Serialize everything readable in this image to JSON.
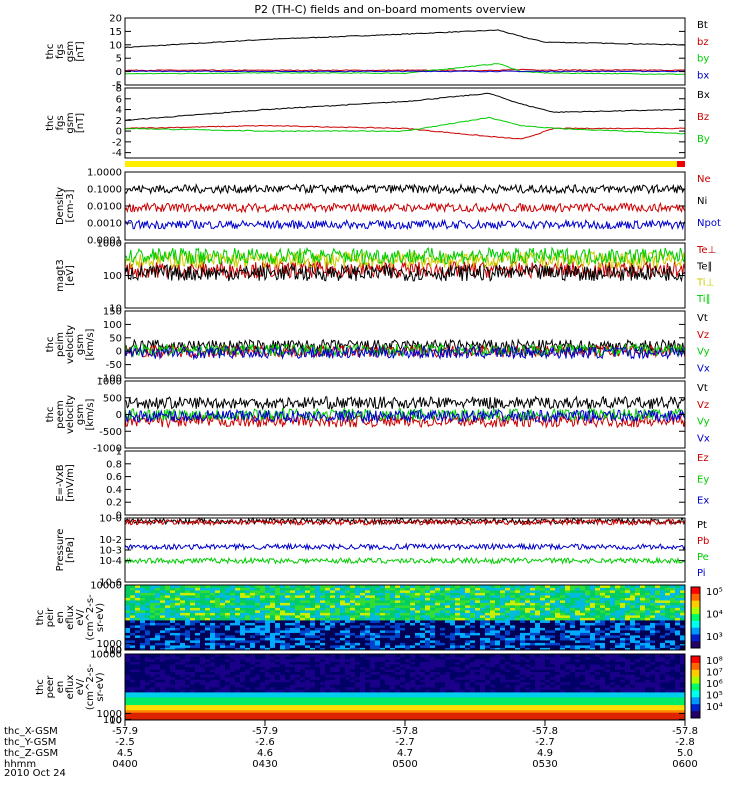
{
  "title": "P2 (TH-C) fields and on-board moments overview",
  "date_label": "2010 Oct 24",
  "chart_data": [
    {
      "type": "line",
      "panel_id": "fgs-gsm-total",
      "ylabel_lines": [
        "thc",
        "fgs",
        "gsm",
        "[nT]"
      ],
      "ylim": [
        -5,
        20
      ],
      "yticks": [
        -5,
        0,
        5,
        10,
        15,
        20
      ],
      "x": [
        0,
        30,
        60,
        80,
        85,
        90,
        120
      ],
      "series": [
        {
          "name": "Bt",
          "color": "#000000",
          "values": [
            9,
            12,
            14,
            15.5,
            13,
            11,
            10
          ]
        },
        {
          "name": "bz",
          "color": "#cc0000",
          "values": [
            0.5,
            0.5,
            0.5,
            0.4,
            0.8,
            0.6,
            0.5
          ]
        },
        {
          "name": "by",
          "color": "#00cc00",
          "values": [
            -0.8,
            -0.5,
            -0.6,
            3,
            0,
            -0.5,
            -1
          ]
        },
        {
          "name": "bx",
          "color": "#0000cc",
          "values": [
            0.1,
            0.1,
            0.1,
            0.1,
            0.1,
            0.1,
            0.1
          ]
        }
      ],
      "legend": [
        "Bt",
        "bz",
        "by",
        "bx"
      ]
    },
    {
      "type": "line",
      "panel_id": "fgs-gsm-zoom",
      "ylabel_lines": [
        "thc",
        "fgs",
        "gsm",
        "[nT]"
      ],
      "ylim": [
        -5,
        8
      ],
      "yticks": [
        -4,
        -2,
        0,
        2,
        4,
        6,
        8
      ],
      "x": [
        0,
        30,
        60,
        78,
        85,
        92,
        120
      ],
      "series": [
        {
          "name": "Bx",
          "color": "#000000",
          "values": [
            2,
            4,
            5.5,
            7,
            5,
            3.5,
            4
          ]
        },
        {
          "name": "Bz",
          "color": "#cc0000",
          "values": [
            0.5,
            1,
            0.5,
            -1,
            -1.5,
            0.5,
            0.5
          ]
        },
        {
          "name": "By",
          "color": "#00cc00",
          "values": [
            0.5,
            0,
            0,
            2.5,
            1,
            0.5,
            -0.5
          ]
        }
      ],
      "legend": [
        "Bx",
        "Bz",
        "By"
      ]
    },
    {
      "type": "line",
      "panel_id": "density",
      "ylabel_lines": [
        "Density",
        "[cm-3]"
      ],
      "log": true,
      "ylim": [
        0.0001,
        1
      ],
      "yticks": [
        "0.0001",
        "0.0010",
        "0.0100",
        "0.1000",
        "1.0000"
      ],
      "series": [
        {
          "name": "Ne",
          "color": "#cc0000",
          "level": 0.008
        },
        {
          "name": "Ni",
          "color": "#000000",
          "level": 0.1
        },
        {
          "name": "Npot",
          "color": "#0000cc",
          "level": 0.0008
        }
      ],
      "legend": [
        "Ne",
        "Ni",
        "Npot"
      ]
    },
    {
      "type": "line",
      "panel_id": "temperature",
      "ylabel_lines": [
        "magt3",
        "[eV]"
      ],
      "log": true,
      "ylim": [
        10,
        1000
      ],
      "yticks": [
        10,
        100,
        1000
      ],
      "series": [
        {
          "name": "Te⊥",
          "color": "#cc0000",
          "level": 150
        },
        {
          "name": "Te∥",
          "color": "#000000",
          "level": 120
        },
        {
          "name": "Ti⊥",
          "color": "#cccc00",
          "level": 300
        },
        {
          "name": "Ti∥",
          "color": "#00cc00",
          "level": 400
        }
      ],
      "legend": [
        "Te⊥",
        "Te∥",
        "Ti⊥",
        "Ti∥"
      ]
    },
    {
      "type": "line",
      "panel_id": "peim-velocity",
      "ylabel_lines": [
        "thc",
        "peim",
        "velocity",
        "gsm",
        "[km/s]"
      ],
      "ylim": [
        -100,
        150
      ],
      "yticks": [
        -100,
        -50,
        0,
        50,
        100,
        150
      ],
      "series": [
        {
          "name": "Vt",
          "color": "#000000",
          "level": 20
        },
        {
          "name": "Vz",
          "color": "#cc0000",
          "level": 0
        },
        {
          "name": "Vy",
          "color": "#00cc00",
          "level": 5
        },
        {
          "name": "Vx",
          "color": "#0000cc",
          "level": -5
        }
      ],
      "legend": [
        "Vt",
        "Vz",
        "Vy",
        "Vx"
      ]
    },
    {
      "type": "line",
      "panel_id": "peem-velocity",
      "ylabel_lines": [
        "thc",
        "peem",
        "velocity",
        "gsm",
        "[km/s]"
      ],
      "ylim": [
        -1000,
        1000
      ],
      "yticks": [
        -1000,
        -500,
        0,
        500,
        1000
      ],
      "series": [
        {
          "name": "Vt",
          "color": "#000000",
          "level": 350
        },
        {
          "name": "Vz",
          "color": "#cc0000",
          "level": -200
        },
        {
          "name": "Vy",
          "color": "#00cc00",
          "level": 0
        },
        {
          "name": "Vx",
          "color": "#0000cc",
          "level": -50
        }
      ],
      "legend": [
        "Vt",
        "Vz",
        "Vy",
        "Vx"
      ]
    },
    {
      "type": "line",
      "panel_id": "efield",
      "ylabel_lines": [
        "E=-VxB",
        "[mV/m]"
      ],
      "ylim": [
        0,
        1
      ],
      "yticks": [
        0.0,
        0.2,
        0.4,
        0.6,
        0.8,
        1.0
      ],
      "series": [],
      "legend": [
        "Ez",
        "Ey",
        "Ex"
      ],
      "legend_colors": [
        "#cc0000",
        "#00cc00",
        "#0000cc"
      ]
    },
    {
      "type": "line",
      "panel_id": "pressure",
      "ylabel_lines": [
        "Pressure",
        "[nPa]"
      ],
      "log": true,
      "ylim": [
        1e-06,
        1
      ],
      "yticks": [
        "10-6",
        "10-4",
        "10-3",
        "10-2",
        "10-0"
      ],
      "series": [
        {
          "name": "Pt",
          "color": "#000000",
          "level": 0.5
        },
        {
          "name": "Pb",
          "color": "#cc0000",
          "level": 0.4
        },
        {
          "name": "Pe",
          "color": "#00cc00",
          "level": 0.0001
        },
        {
          "name": "Pi",
          "color": "#0000cc",
          "level": 0.002
        }
      ],
      "legend": [
        "Pt",
        "Pb",
        "Pe",
        "Pi"
      ]
    },
    {
      "type": "heatmap",
      "panel_id": "peir-en-eflux",
      "ylabel_lines": [
        "thc",
        "peir",
        "en",
        "eflux",
        "eV/",
        "(cm^2-s-",
        "sr-eV)"
      ],
      "ylim": [
        10,
        10000
      ],
      "yticks": [
        10,
        100,
        1000,
        10000
      ],
      "colorbar_ticks": [
        "10³",
        "10⁴",
        "10⁵"
      ]
    },
    {
      "type": "heatmap",
      "panel_id": "peer-en-eflux",
      "ylabel_lines": [
        "thc",
        "peer",
        "en",
        "eflux",
        "eV/",
        "(cm^2-s-",
        "sr-eV)"
      ],
      "ylim": [
        10,
        10000
      ],
      "yticks": [
        10,
        100,
        1000,
        10000
      ],
      "colorbar_ticks": [
        "10⁴",
        "10⁵",
        "10⁶",
        "10⁷",
        "10⁸"
      ]
    }
  ],
  "x_axis": {
    "row_labels": [
      "thc_X-GSM",
      "thc_Y-GSM",
      "thc_Z-GSM",
      "hhmm"
    ],
    "ticks": [
      {
        "x_gsm": "-57.9",
        "y_gsm": "-2.5",
        "z_gsm": "4.5",
        "hhmm": "0400"
      },
      {
        "x_gsm": "-57.9",
        "y_gsm": "-2.6",
        "z_gsm": "4.6",
        "hhmm": "0430"
      },
      {
        "x_gsm": "-57.8",
        "y_gsm": "-2.7",
        "z_gsm": "4.7",
        "hhmm": "0500"
      },
      {
        "x_gsm": "-57.8",
        "y_gsm": "-2.7",
        "z_gsm": "4.9",
        "hhmm": "0530"
      },
      {
        "x_gsm": "-57.8",
        "y_gsm": "-2.8",
        "z_gsm": "5.0",
        "hhmm": "0600"
      }
    ]
  }
}
